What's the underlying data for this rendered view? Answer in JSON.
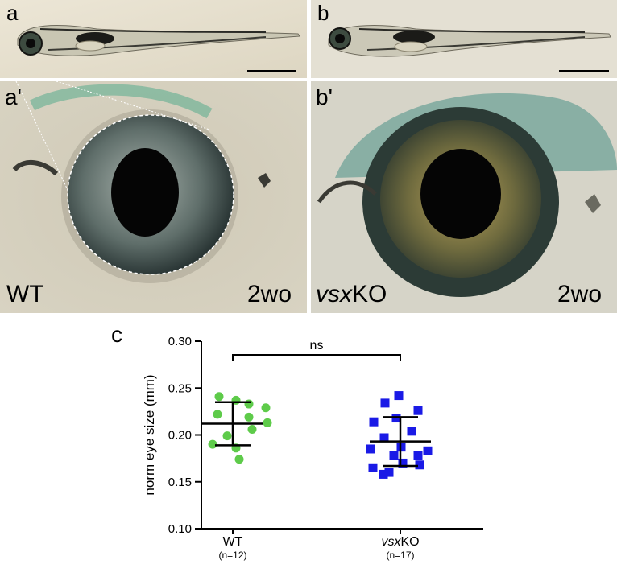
{
  "figure": {
    "panels": {
      "a": {
        "letter": "a"
      },
      "b": {
        "letter": "b"
      },
      "a_prime": {
        "letter": "a'",
        "genotype": "WT",
        "age": "2wo"
      },
      "b_prime": {
        "letter": "b'",
        "genotype_italic": "vsx",
        "genotype_rest": "KO",
        "age": "2wo"
      },
      "c": {
        "letter": "c"
      }
    }
  },
  "chart_data": {
    "type": "scatter",
    "ylabel": "norm eye size (mm)",
    "ylim": [
      0.1,
      0.3
    ],
    "yticks": [
      "0.10",
      "0.15",
      "0.20",
      "0.25",
      "0.30"
    ],
    "significance": "ns",
    "groups": [
      {
        "label": "WT",
        "label_italic": "",
        "n_label": "(n=12)",
        "color": "#5ecb4a",
        "marker": "circle",
        "mean": 0.212,
        "sd_upper": 0.235,
        "sd_lower": 0.189,
        "points": [
          0.241,
          0.237,
          0.233,
          0.229,
          0.222,
          0.219,
          0.213,
          0.206,
          0.199,
          0.19,
          0.186,
          0.174
        ]
      },
      {
        "label": "KO",
        "label_italic": "vsx",
        "n_label": "(n=17)",
        "color": "#1a1ae6",
        "marker": "square",
        "mean": 0.193,
        "sd_upper": 0.219,
        "sd_lower": 0.167,
        "points": [
          0.242,
          0.234,
          0.226,
          0.218,
          0.214,
          0.204,
          0.197,
          0.187,
          0.185,
          0.183,
          0.178,
          0.178,
          0.17,
          0.168,
          0.165,
          0.16,
          0.158
        ]
      }
    ]
  }
}
